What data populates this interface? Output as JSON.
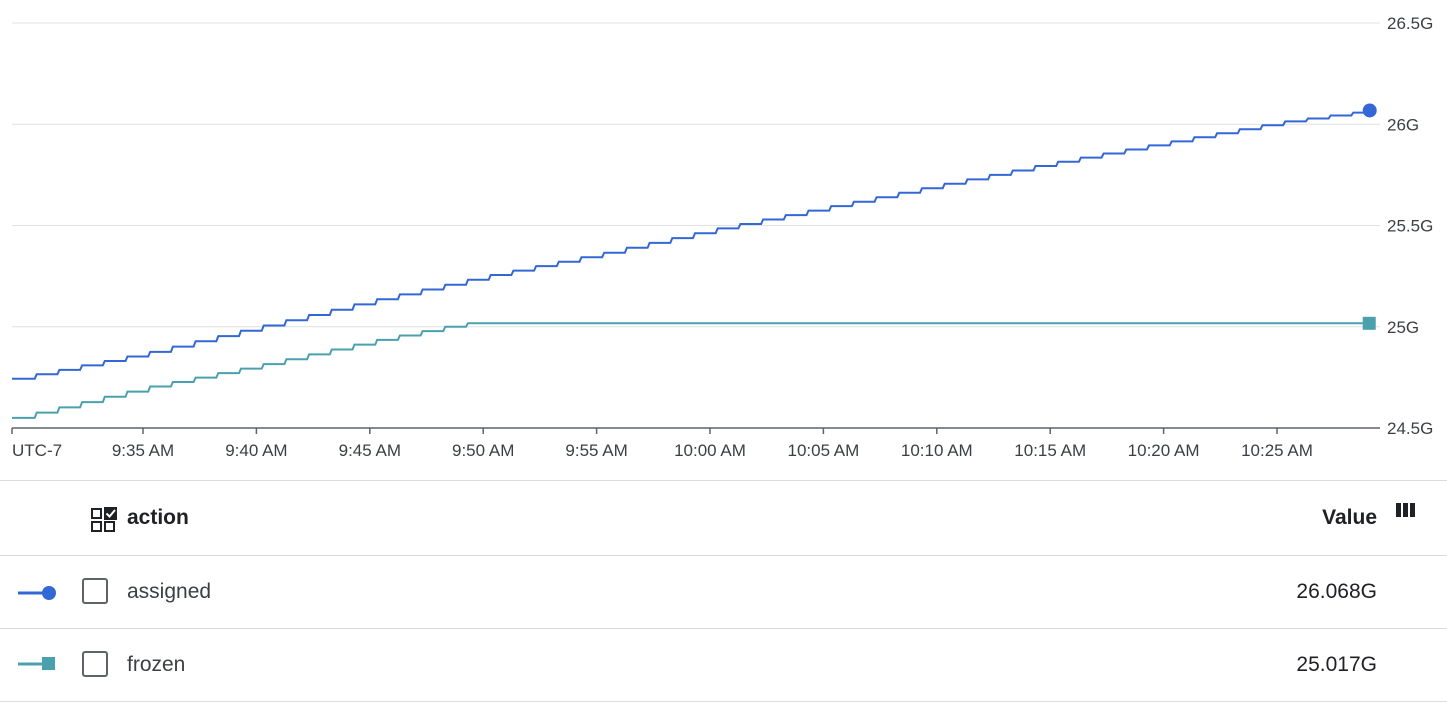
{
  "chart_data": {
    "type": "line",
    "x_axis": {
      "timezone_label": "UTC-7",
      "tick_labels": [
        "9:35 AM",
        "9:40 AM",
        "9:45 AM",
        "9:50 AM",
        "9:55 AM",
        "10:00 AM",
        "10:05 AM",
        "10:10 AM",
        "10:15 AM",
        "10:20 AM",
        "10:25 AM"
      ]
    },
    "y_axis": {
      "tick_labels": [
        "26.5G",
        "26G",
        "25.5G",
        "25G",
        "24.5G"
      ],
      "ylim": [
        24.5,
        26.5
      ],
      "grid": true,
      "position": "right"
    },
    "series": [
      {
        "name": "assigned",
        "color": "#3367d6",
        "marker": "circle",
        "x": [
          "9:30 AM",
          "9:35 AM",
          "9:40 AM",
          "9:45 AM",
          "9:50 AM",
          "9:55 AM",
          "10:00 AM",
          "10:05 AM",
          "10:10 AM",
          "10:15 AM",
          "10:20 AM",
          "10:25 AM",
          "10:29 AM"
        ],
        "values": [
          24.76,
          24.87,
          25.0,
          25.13,
          25.25,
          25.36,
          25.48,
          25.59,
          25.7,
          25.81,
          25.91,
          26.01,
          26.068
        ]
      },
      {
        "name": "frozen",
        "color": "#4aa0ad",
        "marker": "square",
        "x": [
          "9:30 AM",
          "9:35 AM",
          "9:40 AM",
          "9:45 AM",
          "9:49 AM",
          "10:29 AM"
        ],
        "values": [
          24.57,
          24.7,
          24.81,
          24.93,
          25.017,
          25.017
        ]
      }
    ]
  },
  "table": {
    "header": {
      "action_label": "action",
      "value_label": "Value",
      "select_icon": "select-all-icon",
      "columns_icon": "view-column-icon"
    },
    "rows": [
      {
        "name": "assigned",
        "value": "26.068G",
        "color": "#3367d6",
        "marker": "circle"
      },
      {
        "name": "frozen",
        "value": "25.017G",
        "color": "#4aa0ad",
        "marker": "square"
      }
    ]
  }
}
